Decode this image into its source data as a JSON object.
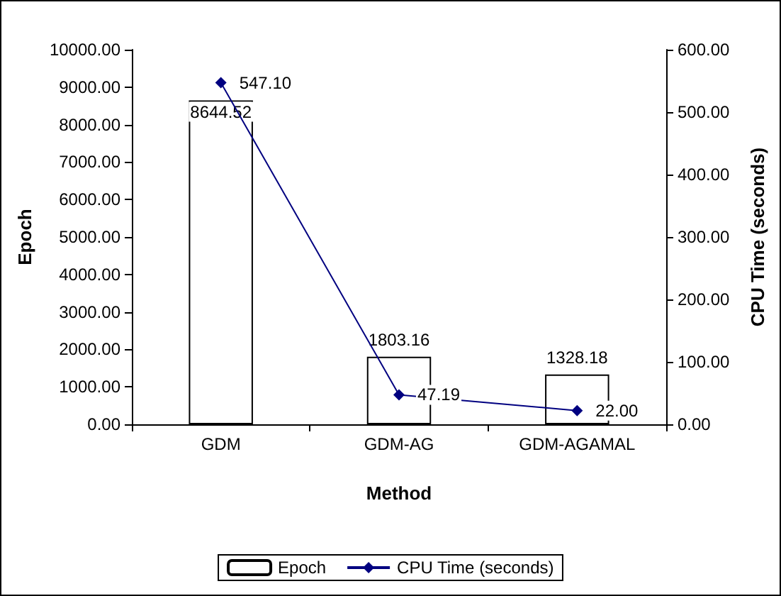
{
  "chart_data": {
    "type": "bar",
    "xlabel": "Method",
    "ylabel": "Epoch",
    "y2label": "CPU Time (seconds)",
    "categories": [
      "GDM",
      "GDM-AG",
      "GDM-AGAMAL"
    ],
    "series": [
      {
        "name": "Epoch",
        "color": "#ffffff",
        "values": [
          8644.52,
          1803.16,
          1328.18
        ],
        "value_labels": [
          "8644.52",
          "1803.16",
          "1328.18"
        ]
      },
      {
        "name": "CPU Time (seconds)",
        "type": "line",
        "axis": "y2",
        "color": "#000080",
        "marker": "diamond",
        "values": [
          547.1,
          47.19,
          22.0
        ],
        "value_labels": [
          "547.10",
          "47.19",
          "22.00"
        ]
      }
    ],
    "ylim": [
      0,
      10000
    ],
    "yticks": [
      {
        "value": 0,
        "label": "0.00"
      },
      {
        "value": 1000,
        "label": "1000.00"
      },
      {
        "value": 2000,
        "label": "2000.00"
      },
      {
        "value": 3000,
        "label": "3000.00"
      },
      {
        "value": 4000,
        "label": "4000.00"
      },
      {
        "value": 5000,
        "label": "5000.00"
      },
      {
        "value": 6000,
        "label": "6000.00"
      },
      {
        "value": 7000,
        "label": "7000.00"
      },
      {
        "value": 8000,
        "label": "8000.00"
      },
      {
        "value": 9000,
        "label": "9000.00"
      },
      {
        "value": 10000,
        "label": "10000.00"
      }
    ],
    "y2lim": [
      0,
      600
    ],
    "y2ticks": [
      {
        "value": 0,
        "label": "0.00"
      },
      {
        "value": 100,
        "label": "100.00"
      },
      {
        "value": 200,
        "label": "200.00"
      },
      {
        "value": 300,
        "label": "300.00"
      },
      {
        "value": 400,
        "label": "400.00"
      },
      {
        "value": 500,
        "label": "500.00"
      },
      {
        "value": 600,
        "label": "600.00"
      }
    ],
    "grid": false,
    "legend": "bottom"
  }
}
